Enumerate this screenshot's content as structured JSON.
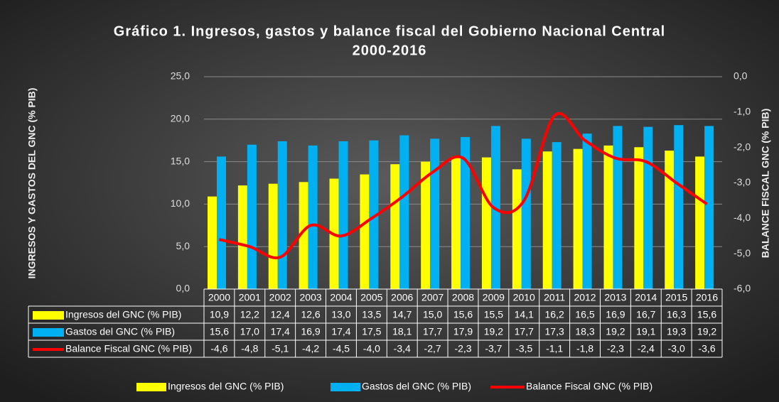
{
  "chart_data": {
    "type": "bar-line",
    "title": [
      "Gráfico 1. Ingresos, gastos y balance fiscal del Gobierno Nacional Central",
      "2000-2016"
    ],
    "y_label": "INGRESOS Y GASTOS DEL GNC (% PIB)",
    "y2_label": "BALANCE FISCAL GNC (% PIB)",
    "categories": [
      "2000",
      "2001",
      "2002",
      "2003",
      "2004",
      "2005",
      "2006",
      "2007",
      "2008",
      "2009",
      "2010",
      "2011",
      "2012",
      "2013",
      "2014",
      "2015",
      "2016"
    ],
    "series": [
      {
        "name": "Ingresos del GNC (% PIB)",
        "type": "bar",
        "color": "#ffff00",
        "values": [
          10.9,
          12.2,
          12.4,
          12.6,
          13.0,
          13.5,
          14.7,
          15.0,
          15.6,
          15.5,
          14.1,
          16.2,
          16.5,
          16.9,
          16.7,
          16.3,
          15.6
        ],
        "value_labels": [
          "10,9",
          "12,2",
          "12,4",
          "12,6",
          "13,0",
          "13,5",
          "14,7",
          "15,0",
          "15,6",
          "15,5",
          "14,1",
          "16,2",
          "16,5",
          "16,9",
          "16,7",
          "16,3",
          "15,6"
        ]
      },
      {
        "name": "Gastos del GNC (% PIB)",
        "type": "bar",
        "color": "#00b0f0",
        "values": [
          15.6,
          17.0,
          17.4,
          16.9,
          17.4,
          17.5,
          18.1,
          17.7,
          17.9,
          19.2,
          17.7,
          17.3,
          18.3,
          19.2,
          19.1,
          19.3,
          19.2
        ],
        "value_labels": [
          "15,6",
          "17,0",
          "17,4",
          "16,9",
          "17,4",
          "17,5",
          "18,1",
          "17,7",
          "17,9",
          "19,2",
          "17,7",
          "17,3",
          "18,3",
          "19,2",
          "19,1",
          "19,3",
          "19,2"
        ]
      },
      {
        "name": "Balance Fiscal GNC (% PIB)",
        "type": "line",
        "axis": "y2",
        "color": "#ff0000",
        "values": [
          -4.6,
          -4.8,
          -5.1,
          -4.2,
          -4.5,
          -4.0,
          -3.4,
          -2.7,
          -2.3,
          -3.7,
          -3.5,
          -1.1,
          -1.8,
          -2.3,
          -2.4,
          -3.0,
          -3.6
        ],
        "value_labels": [
          "-4,6",
          "-4,8",
          "-5,1",
          "-4,2",
          "-4,5",
          "-4,0",
          "-3,4",
          "-2,7",
          "-2,3",
          "-3,7",
          "-3,5",
          "-1,1",
          "-1,8",
          "-2,3",
          "-2,4",
          "-3,0",
          "-3,6"
        ]
      }
    ],
    "ylim": [
      0,
      25
    ],
    "yticks": [
      {
        "value": 0,
        "label": "0,0"
      },
      {
        "value": 5,
        "label": "5,0"
      },
      {
        "value": 10,
        "label": "10,0"
      },
      {
        "value": 15,
        "label": "15,0"
      },
      {
        "value": 20,
        "label": "20,0"
      },
      {
        "value": 25,
        "label": "25,0"
      }
    ],
    "y2lim": [
      -6,
      0
    ],
    "y2ticks": [
      {
        "value": 0,
        "label": "0,0"
      },
      {
        "value": -1,
        "label": "-1,0"
      },
      {
        "value": -2,
        "label": "-2,0"
      },
      {
        "value": -3,
        "label": "-3,0"
      },
      {
        "value": -4,
        "label": "-4,0"
      },
      {
        "value": -5,
        "label": "-5,0"
      },
      {
        "value": -6,
        "label": "-6,0"
      }
    ],
    "grid": true,
    "legend": "bottom"
  }
}
